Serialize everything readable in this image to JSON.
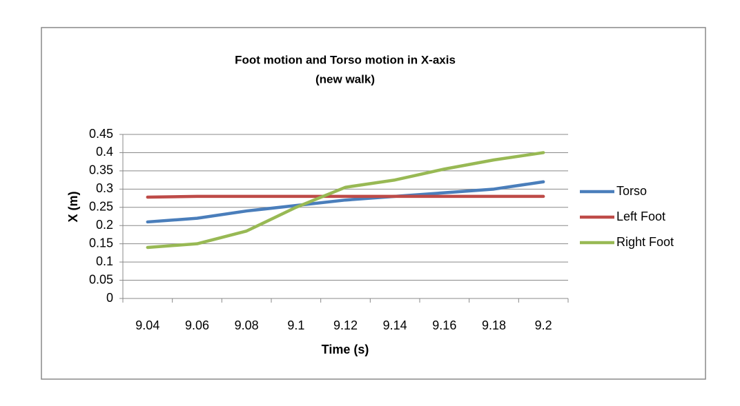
{
  "chart_data": {
    "type": "line",
    "title": [
      "Foot motion and Torso motion in X-axis",
      "(new walk)"
    ],
    "x_label": "Time (s)",
    "y_label": "X (m)",
    "categories": [
      "9.04",
      "9.06",
      "9.08",
      "9.1",
      "9.12",
      "9.14",
      "9.16",
      "9.18",
      "9.2"
    ],
    "series": [
      {
        "name": "Torso",
        "color": "#4a7ebb",
        "values": [
          0.21,
          0.22,
          0.24,
          0.255,
          0.27,
          0.28,
          0.29,
          0.3,
          0.32
        ]
      },
      {
        "name": "Left Foot",
        "color": "#be4b48",
        "values": [
          0.278,
          0.28,
          0.28,
          0.28,
          0.28,
          0.28,
          0.28,
          0.28,
          0.28
        ]
      },
      {
        "name": "Right Foot",
        "color": "#98b954",
        "values": [
          0.14,
          0.15,
          0.185,
          0.25,
          0.305,
          0.325,
          0.355,
          0.38,
          0.4
        ]
      }
    ],
    "ylim": [
      0,
      0.45
    ],
    "yticks": [
      0,
      0.05,
      0.1,
      0.15,
      0.2,
      0.25,
      0.3,
      0.35,
      0.4,
      0.45
    ],
    "grid": true,
    "legend": "right"
  }
}
